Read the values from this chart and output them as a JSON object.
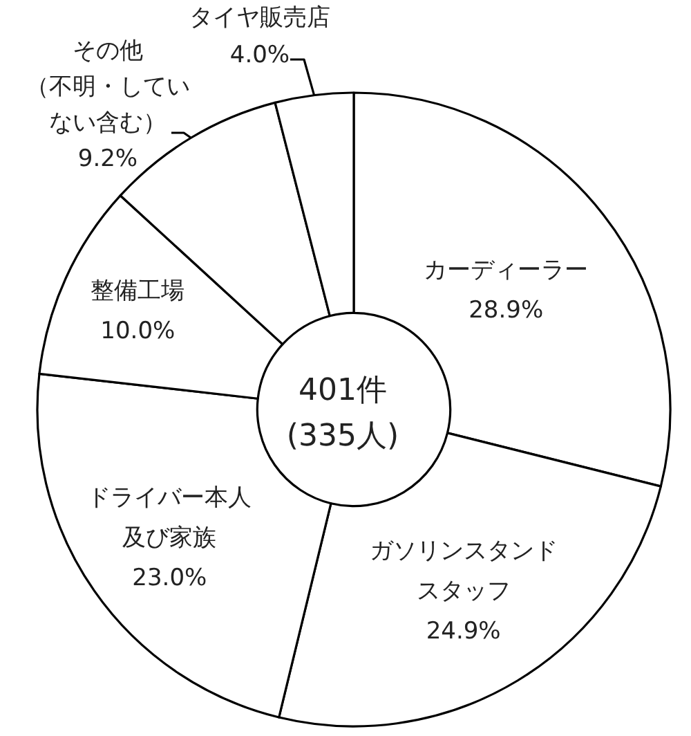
{
  "chart_data": {
    "type": "donut",
    "categories": [
      "カーディーラー",
      "ガソリンスタンドスタッフ",
      "ドライバー本人及び家族",
      "整備工場",
      "その他（不明・していない含む）",
      "タイヤ販売店"
    ],
    "values": [
      28.9,
      24.9,
      23.0,
      10.0,
      9.2,
      4.0
    ],
    "colors": [
      "#ffffff",
      "#ffffff",
      "#ffffff",
      "#ffffff",
      "#ffffff",
      "#ffffff"
    ],
    "value_labels": [
      "28.9%",
      "24.9%",
      "23.0%",
      "10.0%",
      "9.2%",
      "4.0%"
    ],
    "annotations": [
      "401件 (335人)"
    ]
  }
}
